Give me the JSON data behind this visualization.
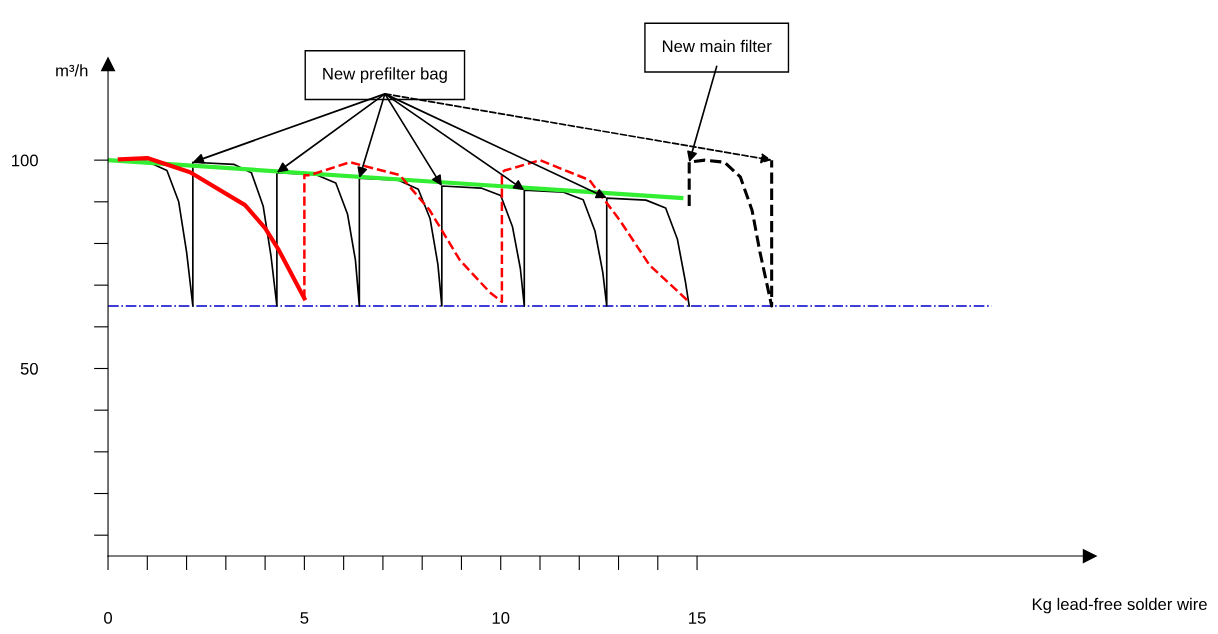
{
  "chart_data": {
    "type": "line",
    "xlabel": "Kg lead-free solder wire",
    "ylabel": "m³/h",
    "xlim": [
      0,
      25
    ],
    "ylim": [
      5,
      123
    ],
    "xticks": [
      0,
      {
        "value": 1,
        "label": null
      },
      {
        "value": 2,
        "label": null
      },
      {
        "value": 3,
        "label": null
      },
      {
        "value": 4,
        "label": null
      },
      5,
      {
        "value": 6,
        "label": null
      },
      {
        "value": 7,
        "label": null
      },
      {
        "value": 8,
        "label": null
      },
      {
        "value": 9,
        "label": null
      },
      10,
      {
        "value": 11,
        "label": null
      },
      {
        "value": 12,
        "label": null
      },
      {
        "value": 13,
        "label": null
      },
      {
        "value": 14,
        "label": null
      },
      15
    ],
    "yticks": [
      {
        "value": 10,
        "label": null
      },
      {
        "value": 20,
        "label": null
      },
      {
        "value": 30,
        "label": null
      },
      {
        "value": 40,
        "label": null
      },
      50,
      {
        "value": 60,
        "label": null
      },
      {
        "value": 70,
        "label": null
      },
      {
        "value": 80,
        "label": null
      },
      {
        "value": 90,
        "label": null
      },
      100
    ],
    "grid": false,
    "marker": "none",
    "annotations": [
      {
        "text": "New prefilter bag",
        "x": 2.16,
        "y": 99.5
      },
      {
        "text": "New main filter",
        "x": 14.8,
        "y": 99.5
      }
    ],
    "series": [
      {
        "color": "#0000cc",
        "line_style": "dashdot",
        "x": [
          0,
          22.5
        ],
        "values": [
          65,
          65
        ]
      },
      {
        "color": "#000000",
        "line_style": "solid",
        "x": [
          0,
          1.0,
          1.5,
          1.8,
          2.0,
          2.16,
          2.16,
          3.2,
          3.65,
          3.95,
          4.15,
          4.3,
          4.3,
          5.3,
          5.8,
          6.1,
          6.3,
          6.4,
          6.4,
          7.4,
          7.9,
          8.2,
          8.4,
          8.5,
          8.5,
          9.5,
          10.0,
          10.3,
          10.5,
          10.6,
          10.6,
          11.6,
          12.1,
          12.4,
          12.6,
          12.7,
          12.7,
          13.7,
          14.2,
          14.5,
          14.7,
          14.8
        ],
        "values": [
          100,
          99.7,
          97.5,
          90,
          78,
          65,
          99.5,
          99,
          97,
          89,
          77,
          65,
          97,
          96.5,
          94.5,
          87,
          76,
          65,
          95.7,
          95.2,
          93,
          86,
          75,
          65,
          93.8,
          93.3,
          91.5,
          84,
          74,
          65,
          92.8,
          92.3,
          90.5,
          83,
          73,
          65,
          90.9,
          90.4,
          88.5,
          81,
          71,
          65
        ]
      },
      {
        "color": "#000000",
        "line_style": "dashed",
        "x": [
          14.8,
          14.8,
          15.2,
          15.7,
          16.1,
          16.4,
          16.6,
          16.9,
          16.9
        ],
        "values": [
          89,
          99.5,
          100,
          99.5,
          96,
          88,
          78,
          65,
          100
        ]
      },
      {
        "color": "#33ee33",
        "line_style": "solid",
        "x": [
          0,
          14.6
        ],
        "values": [
          100,
          90.9
        ]
      },
      {
        "color": "#ff0000",
        "line_style": "solid",
        "x": [
          0.3,
          1.0,
          2.09,
          3.49,
          4.0,
          4.35,
          5.0
        ],
        "values": [
          100.2,
          100.5,
          97.1,
          89.2,
          83.7,
          78.4,
          66.8
        ]
      },
      {
        "color": "#ff0000",
        "line_style": "dashed",
        "x": [
          5.0,
          5.0,
          5.14,
          6.16,
          7.43,
          8.19,
          8.96,
          9.72,
          10.03,
          10.03,
          10.1,
          11.0,
          12.26,
          13.03,
          13.79,
          14.76
        ],
        "values": [
          66.8,
          96.4,
          96.4,
          99.5,
          96.4,
          88,
          76,
          68.3,
          66,
          97.1,
          97.5,
          100,
          95.2,
          85.6,
          74.8,
          66.3
        ]
      }
    ]
  }
}
